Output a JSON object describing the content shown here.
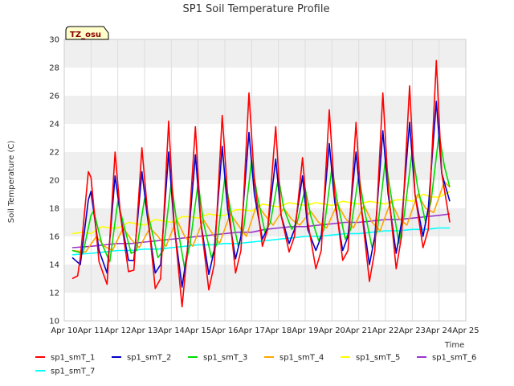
{
  "chart_data": {
    "type": "line",
    "title": "SP1 Soil Temperature Profile",
    "xlabel": "Time",
    "ylabel": "Soil Temperature (C)",
    "site_label": "TZ_osu",
    "ylim": [
      10,
      30
    ],
    "yticks": [
      10,
      12,
      14,
      16,
      18,
      20,
      22,
      24,
      26,
      28,
      30
    ],
    "xlim": [
      0,
      15
    ],
    "xtick_labels": [
      "Apr 10",
      "Apr 11",
      "Apr 12",
      "Apr 13",
      "Apr 14",
      "Apr 15",
      "Apr 16",
      "Apr 17",
      "Apr 18",
      "Apr 19",
      "Apr 20",
      "Apr 21",
      "Apr 22",
      "Apr 23",
      "Apr 24",
      "Apr 25"
    ],
    "x_unit": "days since Apr 10",
    "grid_bands": true,
    "legend_position": "bottom",
    "series": [
      {
        "name": "sp1_smT_1",
        "color": "#ff0000",
        "x": [
          0.3,
          0.5,
          0.6,
          0.9,
          1.0,
          1.3,
          1.6,
          1.9,
          2.1,
          2.4,
          2.6,
          2.9,
          3.1,
          3.4,
          3.6,
          3.9,
          4.1,
          4.4,
          4.6,
          4.9,
          5.1,
          5.4,
          5.6,
          5.9,
          6.1,
          6.4,
          6.6,
          6.9,
          7.1,
          7.4,
          7.6,
          7.9,
          8.1,
          8.4,
          8.6,
          8.9,
          9.1,
          9.4,
          9.6,
          9.9,
          10.1,
          10.4,
          10.6,
          10.9,
          11.1,
          11.4,
          11.6,
          11.9,
          12.1,
          12.4,
          12.6,
          12.9,
          13.1,
          13.4,
          13.6,
          13.9,
          14.1,
          14.4
        ],
        "values": [
          13.0,
          13.2,
          14.5,
          20.6,
          20.2,
          14.2,
          12.6,
          22.0,
          17.5,
          13.5,
          13.6,
          22.3,
          18.0,
          12.3,
          13.0,
          24.2,
          17.0,
          11.0,
          15.0,
          23.8,
          17.0,
          12.2,
          14.0,
          24.6,
          19.0,
          13.4,
          15.0,
          26.2,
          20.0,
          15.3,
          16.5,
          23.8,
          17.5,
          14.9,
          16.0,
          21.6,
          17.0,
          13.7,
          15.0,
          25.0,
          19.0,
          14.3,
          15.0,
          24.1,
          18.0,
          12.8,
          15.0,
          26.2,
          19.5,
          13.7,
          16.0,
          26.7,
          19.0,
          15.2,
          16.5,
          28.5,
          20.5,
          17.0
        ]
      },
      {
        "name": "sp1_smT_2",
        "color": "#0000cc",
        "x": [
          0.3,
          0.6,
          0.9,
          1.0,
          1.3,
          1.6,
          1.9,
          2.1,
          2.4,
          2.6,
          2.9,
          3.1,
          3.4,
          3.6,
          3.9,
          4.1,
          4.4,
          4.6,
          4.9,
          5.1,
          5.4,
          5.6,
          5.9,
          6.1,
          6.4,
          6.6,
          6.9,
          7.1,
          7.4,
          7.6,
          7.9,
          8.1,
          8.4,
          8.6,
          8.9,
          9.1,
          9.4,
          9.6,
          9.9,
          10.1,
          10.4,
          10.6,
          10.9,
          11.1,
          11.4,
          11.6,
          11.9,
          12.1,
          12.4,
          12.6,
          12.9,
          13.1,
          13.4,
          13.6,
          13.9,
          14.1,
          14.4
        ],
        "values": [
          14.5,
          14.0,
          18.6,
          19.2,
          15.0,
          13.4,
          20.3,
          17.5,
          14.3,
          14.3,
          20.6,
          17.5,
          13.4,
          14.0,
          22.0,
          16.8,
          12.4,
          15.0,
          21.8,
          17.0,
          13.3,
          15.0,
          22.4,
          18.0,
          14.4,
          16.0,
          23.4,
          19.0,
          15.8,
          16.6,
          21.5,
          17.5,
          15.5,
          16.5,
          20.3,
          16.5,
          15.0,
          16.0,
          22.6,
          18.5,
          15.0,
          16.0,
          22.0,
          18.0,
          14.0,
          16.0,
          23.5,
          19.0,
          14.8,
          17.0,
          24.1,
          19.0,
          16.0,
          18.0,
          25.6,
          20.5,
          18.5
        ]
      },
      {
        "name": "sp1_smT_3",
        "color": "#00dd00",
        "x": [
          0.3,
          0.7,
          1.0,
          1.1,
          1.4,
          1.7,
          2.0,
          2.2,
          2.5,
          2.7,
          3.0,
          3.2,
          3.5,
          3.7,
          4.0,
          4.2,
          4.5,
          4.7,
          5.0,
          5.2,
          5.5,
          5.7,
          6.0,
          6.2,
          6.5,
          6.7,
          7.0,
          7.2,
          7.5,
          7.7,
          8.0,
          8.2,
          8.5,
          8.7,
          9.0,
          9.2,
          9.5,
          9.7,
          10.0,
          10.2,
          10.5,
          10.7,
          11.0,
          11.2,
          11.5,
          11.7,
          12.0,
          12.2,
          12.5,
          12.7,
          13.0,
          13.2,
          13.5,
          13.7,
          14.0,
          14.2,
          14.4
        ],
        "values": [
          15.0,
          14.8,
          17.5,
          17.8,
          15.5,
          14.2,
          18.5,
          17.0,
          14.8,
          15.0,
          18.7,
          17.0,
          14.5,
          15.0,
          19.9,
          17.0,
          13.7,
          15.5,
          19.8,
          17.0,
          14.5,
          15.5,
          20.2,
          18.0,
          15.3,
          16.5,
          21.4,
          19.0,
          16.3,
          17.0,
          20.2,
          18.0,
          16.5,
          17.0,
          19.4,
          17.5,
          15.7,
          16.5,
          20.9,
          18.5,
          15.8,
          16.5,
          20.4,
          18.0,
          15.2,
          16.5,
          21.5,
          19.0,
          15.5,
          17.5,
          22.1,
          19.5,
          17.0,
          18.5,
          23.3,
          21.0,
          19.5
        ]
      },
      {
        "name": "sp1_smT_4",
        "color": "#ffa500",
        "x": [
          0.3,
          0.8,
          1.2,
          1.5,
          1.8,
          2.2,
          2.5,
          2.8,
          3.2,
          3.5,
          3.8,
          4.2,
          4.5,
          4.8,
          5.2,
          5.5,
          5.8,
          6.2,
          6.5,
          6.8,
          7.2,
          7.5,
          7.8,
          8.2,
          8.5,
          8.8,
          9.2,
          9.5,
          9.8,
          10.2,
          10.5,
          10.8,
          11.2,
          11.5,
          11.8,
          12.2,
          12.5,
          12.8,
          13.2,
          13.5,
          13.8,
          14.2,
          14.4
        ],
        "values": [
          15.0,
          14.9,
          16.0,
          15.3,
          15.0,
          16.6,
          15.8,
          15.2,
          16.6,
          16.0,
          15.3,
          17.2,
          16.0,
          15.3,
          17.2,
          16.3,
          15.5,
          17.6,
          16.8,
          16.0,
          18.3,
          17.5,
          16.8,
          18.0,
          17.2,
          16.8,
          17.8,
          17.0,
          16.6,
          18.3,
          17.3,
          16.6,
          18.2,
          17.0,
          16.4,
          18.5,
          17.3,
          16.8,
          19.0,
          18.0,
          17.7,
          19.9,
          19.5
        ]
      },
      {
        "name": "sp1_smT_5",
        "color": "#ffff00",
        "x": [
          0.3,
          0.7,
          1.0,
          1.4,
          1.7,
          2.0,
          2.4,
          2.7,
          3.0,
          3.4,
          3.7,
          4.0,
          4.4,
          4.7,
          5.0,
          5.4,
          5.7,
          6.0,
          6.4,
          6.7,
          7.0,
          7.4,
          7.7,
          8.0,
          8.4,
          8.7,
          9.0,
          9.4,
          9.7,
          10.0,
          10.4,
          10.7,
          11.0,
          11.4,
          11.7,
          12.0,
          12.4,
          12.7,
          13.0,
          13.4,
          13.7,
          14.0,
          14.4
        ],
        "values": [
          16.2,
          16.3,
          16.2,
          16.7,
          16.6,
          16.6,
          17.0,
          16.9,
          16.8,
          17.2,
          17.1,
          17.0,
          17.4,
          17.4,
          17.3,
          17.6,
          17.5,
          17.5,
          17.9,
          17.9,
          17.8,
          18.3,
          18.2,
          18.1,
          18.4,
          18.3,
          18.2,
          18.4,
          18.3,
          18.2,
          18.5,
          18.4,
          18.3,
          18.5,
          18.4,
          18.3,
          18.6,
          18.6,
          18.5,
          19.0,
          18.8,
          18.8,
          19.2
        ]
      },
      {
        "name": "sp1_smT_6",
        "color": "#9933cc",
        "x": [
          0.3,
          1.0,
          1.5,
          2.0,
          2.5,
          3.0,
          3.5,
          4.0,
          4.5,
          5.0,
          5.5,
          6.0,
          6.5,
          7.0,
          7.5,
          8.0,
          8.5,
          9.0,
          9.5,
          10.0,
          10.5,
          11.0,
          11.5,
          12.0,
          12.5,
          13.0,
          13.5,
          14.0,
          14.4
        ],
        "values": [
          15.2,
          15.3,
          15.4,
          15.5,
          15.5,
          15.6,
          15.7,
          15.8,
          15.9,
          16.0,
          16.1,
          16.2,
          16.3,
          16.3,
          16.5,
          16.6,
          16.7,
          16.7,
          16.8,
          16.9,
          17.0,
          17.0,
          17.1,
          17.2,
          17.2,
          17.3,
          17.4,
          17.5,
          17.6
        ]
      },
      {
        "name": "sp1_smT_7",
        "color": "#00ffff",
        "x": [
          0.3,
          1.0,
          1.5,
          2.0,
          2.5,
          3.0,
          3.5,
          4.0,
          4.5,
          5.0,
          5.5,
          6.0,
          6.5,
          7.0,
          7.5,
          8.0,
          8.5,
          9.0,
          9.5,
          10.0,
          10.5,
          11.0,
          11.5,
          12.0,
          12.5,
          13.0,
          13.5,
          14.0,
          14.4
        ],
        "values": [
          14.7,
          14.8,
          14.9,
          15.0,
          15.0,
          15.1,
          15.1,
          15.2,
          15.3,
          15.4,
          15.4,
          15.5,
          15.5,
          15.6,
          15.7,
          15.8,
          15.9,
          16.0,
          16.0,
          16.1,
          16.2,
          16.2,
          16.3,
          16.4,
          16.4,
          16.5,
          16.5,
          16.6,
          16.6
        ]
      }
    ]
  }
}
